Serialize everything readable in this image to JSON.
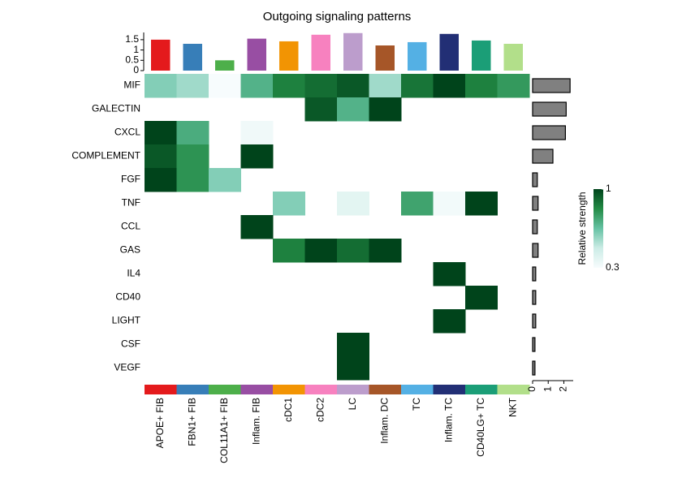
{
  "chart_data": {
    "type": "heatmap",
    "title": "Outgoing signaling patterns",
    "rows": [
      "MIF",
      "GALECTIN",
      "CXCL",
      "COMPLEMENT",
      "FGF",
      "TNF",
      "CCL",
      "GAS",
      "IL4",
      "CD40",
      "LIGHT",
      "CSF",
      "VEGF"
    ],
    "columns": [
      "APOE+ FIB",
      "FBN1+ FIB",
      "COL11A1+ FIB",
      "Inflam. FIB",
      "cDC1",
      "cDC2",
      "LC",
      "Inflam. DC",
      "TC",
      "Inflam. TC",
      "CD40LG+ TC",
      "NKT"
    ],
    "column_colors": [
      "#E41A1C",
      "#377EB8",
      "#4DAF4A",
      "#984EA3",
      "#F29403",
      "#F781BF",
      "#BC9DCC",
      "#A65628",
      "#54B0E4",
      "#222F75",
      "#1B9E77",
      "#B2DF8A"
    ],
    "values": [
      [
        0.6,
        0.55,
        0.3,
        0.7,
        0.85,
        0.9,
        0.95,
        0.55,
        0.88,
        1,
        0.85,
        0.78
      ],
      [
        null,
        null,
        null,
        null,
        null,
        0.95,
        0.7,
        1,
        null,
        null,
        null,
        null
      ],
      [
        1,
        0.72,
        null,
        0.33,
        null,
        null,
        null,
        null,
        null,
        null,
        null,
        null
      ],
      [
        0.95,
        0.8,
        null,
        1,
        null,
        null,
        null,
        null,
        null,
        null,
        null,
        null
      ],
      [
        1,
        0.8,
        0.6,
        null,
        null,
        null,
        null,
        null,
        null,
        null,
        null,
        null
      ],
      [
        null,
        null,
        null,
        null,
        0.6,
        null,
        0.38,
        null,
        0.75,
        0.32,
        1,
        null
      ],
      [
        null,
        null,
        null,
        1,
        null,
        null,
        null,
        null,
        null,
        null,
        null,
        null
      ],
      [
        null,
        null,
        null,
        null,
        0.85,
        1,
        0.9,
        1,
        null,
        null,
        null,
        null
      ],
      [
        null,
        null,
        null,
        null,
        null,
        null,
        null,
        null,
        null,
        1,
        null,
        null
      ],
      [
        null,
        null,
        null,
        null,
        null,
        null,
        null,
        null,
        null,
        null,
        1,
        null
      ],
      [
        null,
        null,
        null,
        null,
        null,
        null,
        null,
        null,
        null,
        1,
        null,
        null
      ],
      [
        null,
        null,
        null,
        null,
        null,
        null,
        1,
        null,
        null,
        null,
        null,
        null
      ],
      [
        null,
        null,
        null,
        null,
        null,
        null,
        1,
        null,
        null,
        null,
        null,
        null
      ]
    ],
    "colorscale": [
      "#f7fcfd",
      "#ccece6",
      "#66c2a4",
      "#238b45",
      "#00441b"
    ],
    "legend": {
      "title": "Relative strength",
      "lim": [
        0.3,
        1
      ],
      "ticks": [
        0.3,
        1
      ]
    },
    "top_bar": {
      "values": [
        1.5,
        1.3,
        0.5,
        1.55,
        1.42,
        1.74,
        1.82,
        1.22,
        1.38,
        1.78,
        1.46,
        1.3
      ],
      "ylim": [
        0,
        1.85
      ],
      "yticks": [
        0,
        0.5,
        1,
        1.5
      ]
    },
    "right_bar": {
      "values": [
        2.4,
        2.15,
        2.1,
        1.3,
        0.3,
        0.35,
        0.3,
        0.35,
        0.2,
        0.2,
        0.2,
        0.15,
        0.15
      ],
      "color": "#808080",
      "xlim": [
        0,
        2.6
      ],
      "xticks": [
        0,
        1,
        2
      ]
    }
  }
}
